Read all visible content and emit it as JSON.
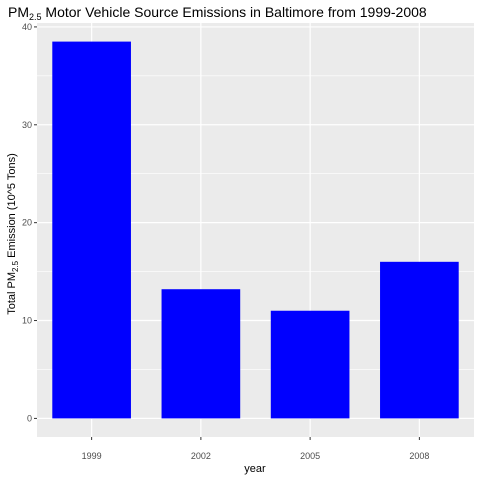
{
  "chart_data": {
    "type": "bar",
    "title": {
      "prefix": "PM",
      "subscript": "2.5",
      "suffix": " Motor Vehicle Source Emissions in Baltimore from 1999-2008"
    },
    "xlabel": "year",
    "ylabel": {
      "prefix": "Total PM",
      "subscript": "2.5",
      "suffix": " Emission (10^5 Tons)"
    },
    "categories": [
      "1999",
      "2002",
      "2005",
      "2008"
    ],
    "values": [
      38.5,
      13.2,
      11.0,
      16.0
    ],
    "yticks": [
      0,
      10,
      20,
      30,
      40
    ],
    "ylim": [
      -1.9,
      40.4
    ],
    "grid": true,
    "bar_color": "#0000ff",
    "panel_color": "#ebebeb",
    "grid_color": "#ffffff"
  }
}
